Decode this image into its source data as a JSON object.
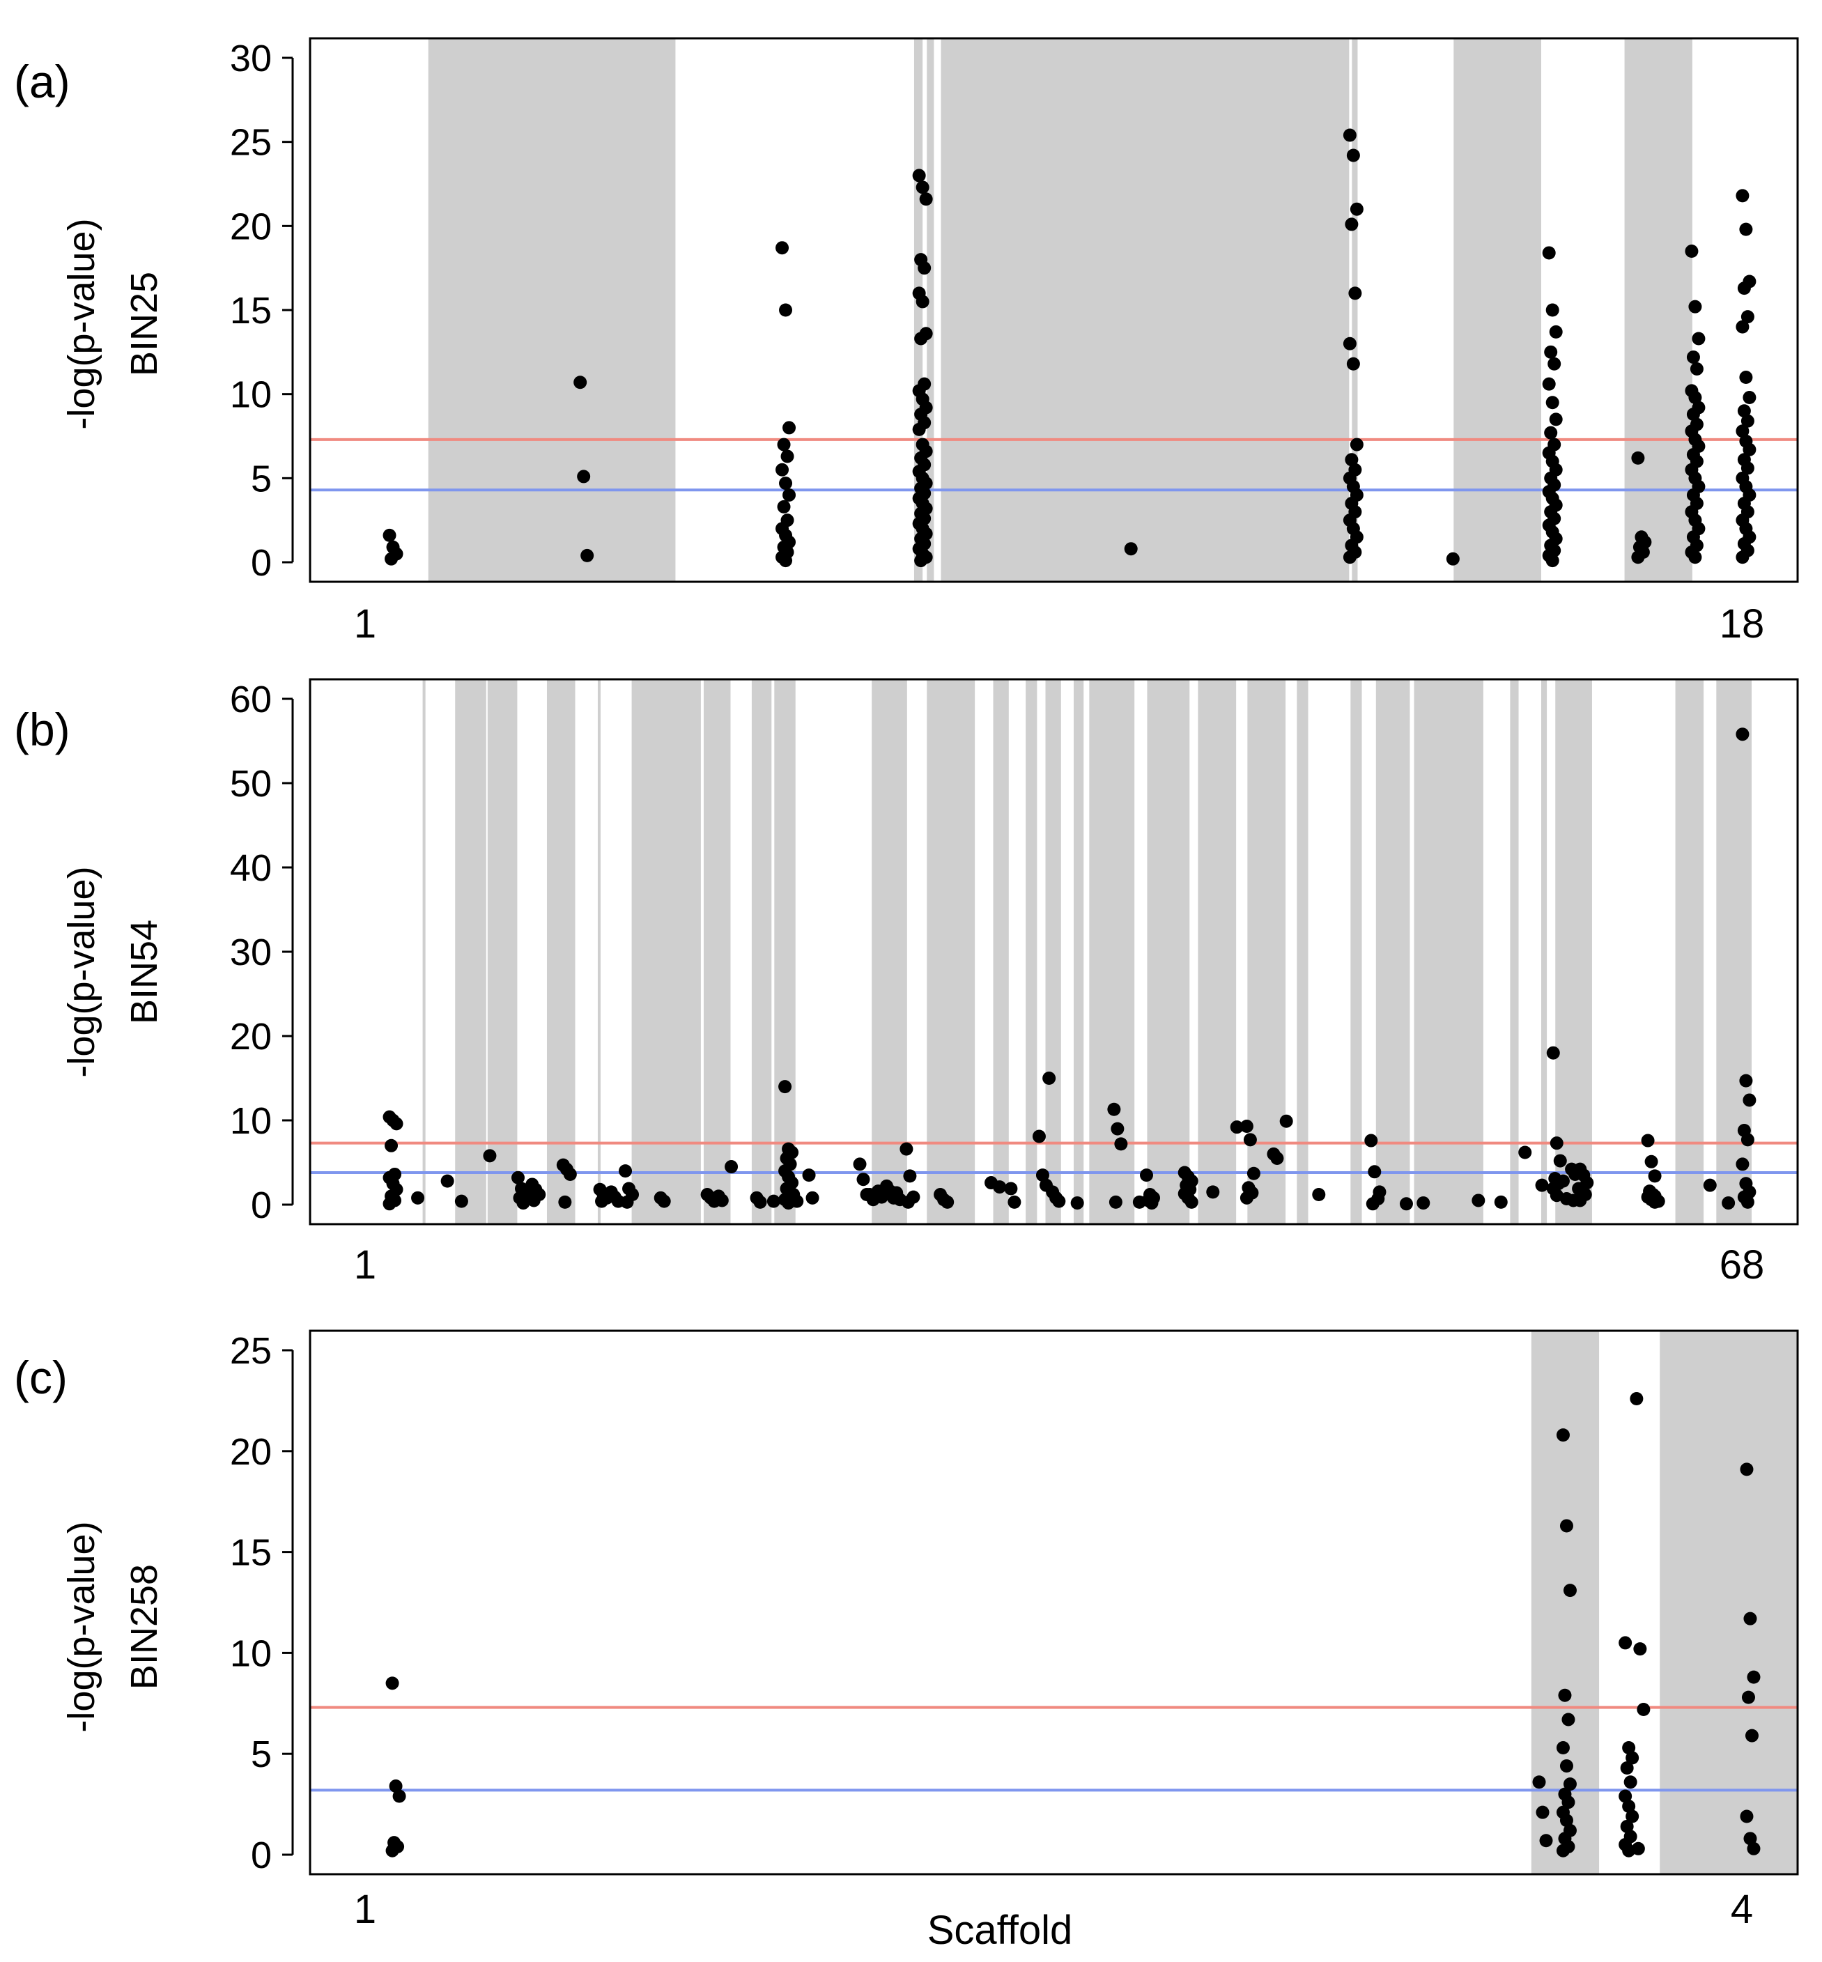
{
  "chart_data": [
    {
      "type": "scatter",
      "panel_label": "(a)",
      "ylabel_line1": "-log(p-value)",
      "ylabel_line2": "BIN25",
      "ylim": [
        0,
        30
      ],
      "yticks": [
        0,
        5,
        10,
        15,
        20,
        25,
        30
      ],
      "x_range": [
        0,
        100
      ],
      "x_first_label": "1",
      "x_last_label": "18",
      "red_threshold": 7.3,
      "blue_threshold": 4.3,
      "colors": {
        "red": "#f08a80",
        "blue": "#7f96ee",
        "shade": "#cfcfcf",
        "point": "#000000"
      },
      "shaded_bands": [
        [
          6.3,
          23.8
        ],
        [
          40.7,
          41.3
        ],
        [
          41.6,
          42.1
        ],
        [
          42.6,
          71.5
        ],
        [
          71.7,
          72.1
        ],
        [
          78.9,
          85.1
        ],
        [
          91.0,
          95.8
        ]
      ],
      "clusters": [
        {
          "x": 3.8,
          "values": [
            1.6,
            0.9,
            0.5,
            0.2
          ]
        },
        {
          "x": 17.3,
          "values": [
            10.7,
            5.1,
            0.4
          ]
        },
        {
          "x": 31.6,
          "values": [
            18.7,
            15.0,
            8.0,
            7.0,
            6.3,
            5.5,
            4.7,
            4.0,
            3.3,
            2.5,
            2.0,
            1.6,
            1.2,
            0.9,
            0.6,
            0.3,
            0.1
          ]
        },
        {
          "x": 41.3,
          "values": [
            23.0,
            22.3,
            21.6,
            18.0,
            17.5,
            16.0,
            15.5,
            13.6,
            13.3,
            10.6,
            10.2,
            9.7,
            9.2,
            8.8,
            8.3,
            7.9,
            7.0,
            6.6,
            6.2,
            5.8,
            5.4,
            5.0,
            4.7,
            4.4,
            4.1,
            3.8,
            3.5,
            3.2,
            2.9,
            2.6,
            2.3,
            2.0,
            1.7,
            1.4,
            1.1,
            0.8,
            0.5,
            0.3,
            0.1
          ]
        },
        {
          "x": 56.3,
          "values": [
            0.8
          ]
        },
        {
          "x": 71.8,
          "values": [
            25.4,
            24.2,
            21.0,
            20.1,
            16.0,
            13.0,
            11.8,
            7.0,
            6.1,
            5.5,
            5.0,
            4.5,
            4.0,
            3.5,
            3.0,
            2.5,
            2.0,
            1.5,
            1.0,
            0.6,
            0.3
          ]
        },
        {
          "x": 79.1,
          "values": [
            0.2
          ]
        },
        {
          "x": 85.9,
          "values": [
            18.4,
            15.0,
            13.7,
            12.5,
            11.8,
            10.6,
            9.5,
            8.5,
            7.7,
            7.0,
            6.5,
            6.0,
            5.5,
            5.0,
            4.6,
            4.2,
            3.8,
            3.4,
            3.0,
            2.6,
            2.2,
            1.8,
            1.4,
            1.0,
            0.7,
            0.4,
            0.1
          ]
        },
        {
          "x": 92.2,
          "values": [
            6.2,
            1.5,
            1.2,
            0.9,
            0.6,
            0.3
          ]
        },
        {
          "x": 96.0,
          "values": [
            18.5,
            15.2,
            13.3,
            12.2,
            11.5,
            10.2,
            9.8,
            9.2,
            8.8,
            8.2,
            7.8,
            7.3,
            6.9,
            6.4,
            6.0,
            5.5,
            5.0,
            4.5,
            4.0,
            3.5,
            3.0,
            2.5,
            2.0,
            1.5,
            1.0,
            0.6,
            0.3
          ]
        },
        {
          "x": 99.6,
          "values": [
            21.8,
            19.8,
            16.7,
            16.3,
            14.6,
            14.0,
            11.0,
            9.8,
            9.0,
            8.4,
            7.8,
            7.2,
            6.7,
            6.1,
            5.6,
            5.0,
            4.5,
            4.0,
            3.5,
            3.0,
            2.5,
            2.0,
            1.5,
            1.1,
            0.7,
            0.3
          ]
        }
      ]
    },
    {
      "type": "scatter",
      "panel_label": "(b)",
      "ylabel_line1": "-log(p-value)",
      "ylabel_line2": "BIN54",
      "ylim": [
        0,
        60
      ],
      "yticks": [
        0,
        10,
        20,
        30,
        40,
        50,
        60
      ],
      "x_range": [
        0,
        100
      ],
      "x_first_label": "1",
      "x_last_label": "68",
      "red_threshold": 7.3,
      "blue_threshold": 3.8,
      "colors": {
        "red": "#f08a80",
        "blue": "#7f96ee",
        "shade": "#cfcfcf",
        "point": "#000000"
      },
      "shaded_bands": [
        [
          5.9,
          6.1
        ],
        [
          8.2,
          10.4
        ],
        [
          10.5,
          12.6
        ],
        [
          14.7,
          16.7
        ],
        [
          18.3,
          18.5
        ],
        [
          20.7,
          25.6
        ],
        [
          25.8,
          27.7
        ],
        [
          29.2,
          30.6
        ],
        [
          30.8,
          32.3
        ],
        [
          37.7,
          40.2
        ],
        [
          41.6,
          45.0
        ],
        [
          46.3,
          47.4
        ],
        [
          48.6,
          49.4
        ],
        [
          50.0,
          51.1
        ],
        [
          52.0,
          52.7
        ],
        [
          53.1,
          56.3
        ],
        [
          57.2,
          60.2
        ],
        [
          60.8,
          63.5
        ],
        [
          64.3,
          67.0
        ],
        [
          67.8,
          68.6
        ],
        [
          71.6,
          72.4
        ],
        [
          73.4,
          75.8
        ],
        [
          76.1,
          81.0
        ],
        [
          82.9,
          83.5
        ],
        [
          85.1,
          85.5
        ],
        [
          86.1,
          88.7
        ],
        [
          94.6,
          96.6
        ],
        [
          97.5,
          100.0
        ]
      ],
      "clusters": [
        {
          "x": 3.8,
          "values": [
            10.4,
            10.0,
            9.6,
            7.0,
            3.6,
            3.2,
            2.5,
            1.8,
            1.0,
            0.5,
            0.1
          ]
        },
        {
          "x": 5.8,
          "values": [
            0.8
          ]
        },
        {
          "x": 7.9,
          "values": [
            2.8
          ]
        },
        {
          "x": 8.9,
          "values": [
            0.4
          ]
        },
        {
          "x": 10.9,
          "values": [
            5.8
          ]
        },
        {
          "x": 12.9,
          "values": [
            3.2,
            1.9,
            1.3,
            0.8,
            0.2
          ]
        },
        {
          "x": 13.9,
          "values": [
            2.4,
            1.8,
            1.2,
            0.5
          ]
        },
        {
          "x": 16.1,
          "values": [
            4.7,
            4.2,
            3.6,
            0.3
          ]
        },
        {
          "x": 18.7,
          "values": [
            1.8,
            1.2,
            0.8,
            0.4
          ]
        },
        {
          "x": 19.5,
          "values": [
            1.5,
            0.9,
            0.4
          ]
        },
        {
          "x": 20.5,
          "values": [
            4.0,
            1.9,
            1.2,
            0.3
          ]
        },
        {
          "x": 23.0,
          "values": [
            0.8,
            0.4
          ]
        },
        {
          "x": 26.3,
          "values": [
            1.2,
            0.8,
            0.4
          ]
        },
        {
          "x": 27.1,
          "values": [
            1.0,
            0.5
          ]
        },
        {
          "x": 28.0,
          "values": [
            4.5
          ]
        },
        {
          "x": 29.8,
          "values": [
            0.8,
            0.3
          ]
        },
        {
          "x": 31.0,
          "values": [
            0.4
          ]
        },
        {
          "x": 31.8,
          "values": [
            14.0,
            6.6,
            6.2,
            5.5,
            4.8,
            4.0,
            3.3,
            2.6,
            1.9,
            1.2,
            0.6,
            0.2
          ]
        },
        {
          "x": 32.4,
          "values": [
            1.2,
            0.4
          ]
        },
        {
          "x": 33.5,
          "values": [
            3.5,
            0.8
          ]
        },
        {
          "x": 37.1,
          "values": [
            4.8,
            3.0,
            1.2
          ]
        },
        {
          "x": 37.8,
          "values": [
            1.2,
            0.6
          ]
        },
        {
          "x": 38.4,
          "values": [
            1.6,
            0.9
          ]
        },
        {
          "x": 39.0,
          "values": [
            2.2,
            1.6,
            0.8
          ]
        },
        {
          "x": 39.7,
          "values": [
            1.4,
            0.6
          ]
        },
        {
          "x": 40.4,
          "values": [
            6.6,
            3.4,
            0.9,
            0.3
          ]
        },
        {
          "x": 42.8,
          "values": [
            1.2,
            0.6
          ]
        },
        {
          "x": 43.3,
          "values": [
            0.3
          ]
        },
        {
          "x": 46.4,
          "values": [
            2.6
          ]
        },
        {
          "x": 47.0,
          "values": [
            2.1
          ]
        },
        {
          "x": 47.8,
          "values": [
            1.9,
            0.3
          ]
        },
        {
          "x": 49.8,
          "values": [
            8.1,
            3.5,
            2.3
          ]
        },
        {
          "x": 50.5,
          "values": [
            15.0,
            1.5,
            0.8
          ]
        },
        {
          "x": 51.2,
          "values": [
            0.4
          ]
        },
        {
          "x": 52.5,
          "values": [
            0.2
          ]
        },
        {
          "x": 55.1,
          "values": [
            11.3,
            9.0,
            7.2,
            0.3
          ]
        },
        {
          "x": 56.9,
          "values": [
            0.3
          ]
        },
        {
          "x": 57.4,
          "values": [
            3.5,
            1.2,
            0.8,
            0.5,
            0.2
          ]
        },
        {
          "x": 60.1,
          "values": [
            3.8,
            3.3,
            2.8,
            2.3,
            1.8,
            1.3,
            0.8,
            0.3
          ]
        },
        {
          "x": 62.1,
          "values": [
            1.5
          ]
        },
        {
          "x": 63.8,
          "values": [
            9.2
          ]
        },
        {
          "x": 64.5,
          "values": [
            9.3,
            7.7,
            3.7,
            2.0,
            1.4,
            0.8
          ]
        },
        {
          "x": 66.4,
          "values": [
            6.0,
            5.5
          ]
        },
        {
          "x": 67.3,
          "values": [
            9.9
          ]
        },
        {
          "x": 69.6,
          "values": [
            1.2
          ]
        },
        {
          "x": 73.3,
          "values": [
            7.6,
            3.9,
            0.7,
            0.1
          ]
        },
        {
          "x": 73.9,
          "values": [
            1.5
          ]
        },
        {
          "x": 75.8,
          "values": [
            0.1
          ]
        },
        {
          "x": 77.0,
          "values": [
            0.2
          ]
        },
        {
          "x": 80.9,
          "values": [
            0.5
          ]
        },
        {
          "x": 82.5,
          "values": [
            0.3
          ]
        },
        {
          "x": 84.2,
          "values": [
            6.2
          ]
        },
        {
          "x": 85.4,
          "values": [
            2.3
          ]
        },
        {
          "x": 86.2,
          "values": [
            18.0,
            7.3,
            5.2,
            3.1,
            2.5,
            1.9,
            1.1
          ]
        },
        {
          "x": 86.9,
          "values": [
            2.8,
            0.7
          ]
        },
        {
          "x": 87.5,
          "values": [
            4.2,
            3.6,
            1.9,
            0.5
          ]
        },
        {
          "x": 88.1,
          "values": [
            4.2,
            3.5,
            2.6,
            1.9,
            1.2,
            0.5
          ]
        },
        {
          "x": 92.9,
          "values": [
            7.6,
            5.1,
            3.4,
            1.6,
            1.2,
            0.9,
            0.6,
            0.3
          ]
        },
        {
          "x": 93.4,
          "values": [
            1.0,
            0.4
          ]
        },
        {
          "x": 97.3,
          "values": [
            2.3
          ]
        },
        {
          "x": 98.6,
          "values": [
            0.2
          ]
        },
        {
          "x": 99.6,
          "values": [
            55.8,
            14.7,
            12.4,
            8.8,
            7.7,
            4.8,
            2.5,
            1.5,
            0.9,
            0.3
          ]
        }
      ]
    },
    {
      "type": "scatter",
      "panel_label": "(c)",
      "ylabel_line1": "-log(p-value)",
      "ylabel_line2": "BIN258",
      "ylim": [
        0,
        25
      ],
      "yticks": [
        0,
        5,
        10,
        15,
        20,
        25
      ],
      "x_range": [
        0,
        100
      ],
      "x_first_label": "1",
      "x_last_label": "4",
      "xlabel": "Scaffold",
      "red_threshold": 7.3,
      "blue_threshold": 3.2,
      "colors": {
        "red": "#f08a80",
        "blue": "#7f96ee",
        "shade": "#cfcfcf",
        "point": "#000000"
      },
      "shaded_bands": [
        [
          84.4,
          89.2
        ],
        [
          93.5,
          106.0
        ]
      ],
      "clusters": [
        {
          "x": 4.0,
          "values": [
            8.5,
            3.4,
            2.9,
            0.6,
            0.4,
            0.2
          ]
        },
        {
          "x": 85.2,
          "values": [
            3.6,
            2.1,
            0.7
          ]
        },
        {
          "x": 86.9,
          "values": [
            20.8,
            16.3,
            13.1,
            7.9,
            6.7,
            5.3,
            4.4,
            3.5,
            3.0,
            2.6,
            2.1,
            1.7,
            1.2,
            0.8,
            0.4,
            0.2
          ]
        },
        {
          "x": 91.3,
          "values": [
            10.5,
            5.3,
            4.8,
            4.3,
            3.6,
            2.9,
            2.4,
            1.9,
            1.4,
            0.9,
            0.5,
            0.2
          ]
        },
        {
          "x": 92.1,
          "values": [
            22.6,
            10.2,
            7.2,
            0.3
          ]
        },
        {
          "x": 99.9,
          "values": [
            19.1,
            11.7,
            8.8,
            7.8,
            5.9,
            1.9,
            0.8,
            0.3
          ]
        }
      ]
    }
  ]
}
